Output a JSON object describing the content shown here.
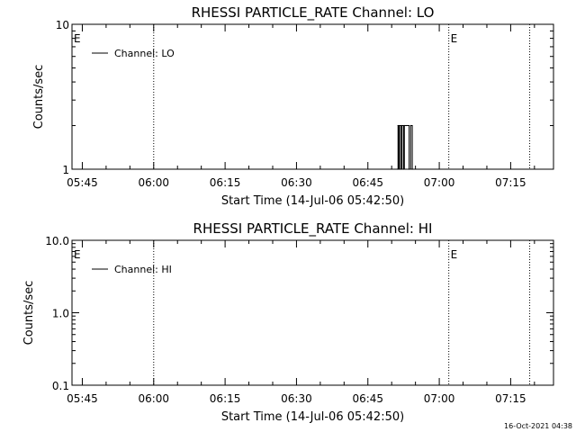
{
  "footer_timestamp": "16-Oct-2021 04:38",
  "chart_data": [
    {
      "type": "line",
      "title": "RHESSI PARTICLE_RATE Channel: LO",
      "xlabel": "Start Time (14-Jul-06 05:42:50)",
      "ylabel": "Counts/sec",
      "yscale": "log",
      "ylim": [
        1,
        10
      ],
      "ytick_labels": [
        "1",
        "10"
      ],
      "xlim": [
        "05:42:50",
        "07:24:00"
      ],
      "xtick_labels": [
        "05:45",
        "06:00",
        "06:15",
        "06:30",
        "06:45",
        "07:00",
        "07:15"
      ],
      "legend": "top-left",
      "series": [
        {
          "name": "Channel: LO",
          "x": [
            "06:51:10",
            "06:51:20",
            "06:51:30",
            "06:51:40",
            "06:52:00",
            "06:52:10",
            "06:52:30",
            "06:52:40",
            "06:53:00",
            "06:53:20",
            "06:53:40",
            "06:54:00",
            "06:54:20"
          ],
          "y": [
            1,
            2,
            1,
            2,
            1,
            2,
            1,
            2,
            2,
            2,
            1,
            2,
            1
          ]
        }
      ],
      "vlines": [
        {
          "x": "05:42:50",
          "label": "E"
        },
        {
          "x": "06:00:00",
          "label": ""
        },
        {
          "x": "07:02:00",
          "label": "E"
        },
        {
          "x": "07:19:00",
          "label": ""
        }
      ]
    },
    {
      "type": "line",
      "title": "RHESSI PARTICLE_RATE Channel: HI",
      "xlabel": "Start Time (14-Jul-06 05:42:50)",
      "ylabel": "Counts/sec",
      "yscale": "log",
      "ylim": [
        0.1,
        10
      ],
      "ytick_labels": [
        "0.1",
        "1.0",
        "10.0"
      ],
      "xlim": [
        "05:42:50",
        "07:24:00"
      ],
      "xtick_labels": [
        "05:45",
        "06:00",
        "06:15",
        "06:30",
        "06:45",
        "07:00",
        "07:15"
      ],
      "legend": "top-left",
      "series": [
        {
          "name": "Channel: HI",
          "x": [],
          "y": []
        }
      ],
      "vlines": [
        {
          "x": "05:42:50",
          "label": "E"
        },
        {
          "x": "06:00:00",
          "label": ""
        },
        {
          "x": "07:02:00",
          "label": "E"
        },
        {
          "x": "07:19:00",
          "label": ""
        }
      ]
    }
  ]
}
